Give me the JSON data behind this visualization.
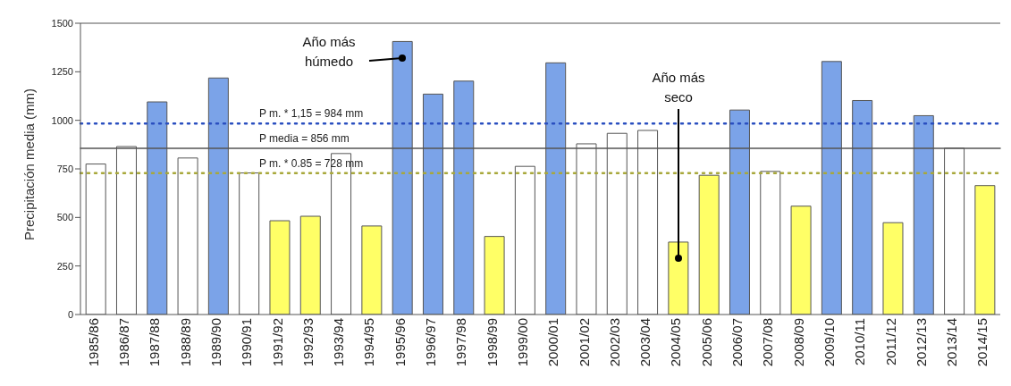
{
  "chart_data": {
    "type": "bar",
    "ylabel": "Precipitación media (mm)",
    "categories": [
      "1985/86",
      "1986/87",
      "1987/88",
      "1988/89",
      "1989/90",
      "1990/91",
      "1991/92",
      "1992/93",
      "1993/94",
      "1994/95",
      "1995/96",
      "1996/97",
      "1997/98",
      "1998/99",
      "1999/00",
      "2000/01",
      "2001/02",
      "2002/03",
      "2003/04",
      "2004/05",
      "2005/06",
      "2006/07",
      "2007/08",
      "2008/09",
      "2009/10",
      "2010/11",
      "2011/12",
      "2012/13",
      "2013/14",
      "2014/15"
    ],
    "values": [
      775,
      865,
      1095,
      806,
      1218,
      729,
      483,
      506,
      829,
      456,
      1406,
      1135,
      1202,
      402,
      763,
      1296,
      879,
      933,
      948,
      373,
      717,
      1053,
      737,
      558,
      1303,
      1102,
      473,
      1024,
      857,
      664
    ],
    "colors": [
      "#ffffff",
      "#ffffff",
      "#7ba3e8",
      "#ffffff",
      "#7ba3e8",
      "#ffffff",
      "#ffff66",
      "#ffff66",
      "#ffffff",
      "#ffff66",
      "#7ba3e8",
      "#7ba3e8",
      "#7ba3e8",
      "#ffff66",
      "#ffffff",
      "#7ba3e8",
      "#ffffff",
      "#ffffff",
      "#ffffff",
      "#ffff66",
      "#ffff66",
      "#7ba3e8",
      "#ffffff",
      "#ffff66",
      "#7ba3e8",
      "#7ba3e8",
      "#ffff66",
      "#7ba3e8",
      "#ffffff",
      "#ffff66"
    ],
    "ylim": [
      0,
      1500
    ],
    "yticks": [
      0,
      250,
      500,
      750,
      1000,
      1250,
      1500
    ],
    "ref_lines": [
      {
        "axis": "y",
        "value": 984,
        "label": "P m. * 1,15 = 984 mm",
        "color": "#2a4fc0",
        "line_style": "dotted"
      },
      {
        "axis": "y",
        "value": 856,
        "label": "P media = 856 mm",
        "color": "#555555",
        "line_style": "solid"
      },
      {
        "axis": "y",
        "value": 728,
        "label": "P m. * 0.85 = 728 mm",
        "color": "#a8a83a",
        "line_style": "dotted"
      }
    ],
    "annotations": [
      "Año más\nhúmedo",
      "Año más\nseco"
    ]
  }
}
